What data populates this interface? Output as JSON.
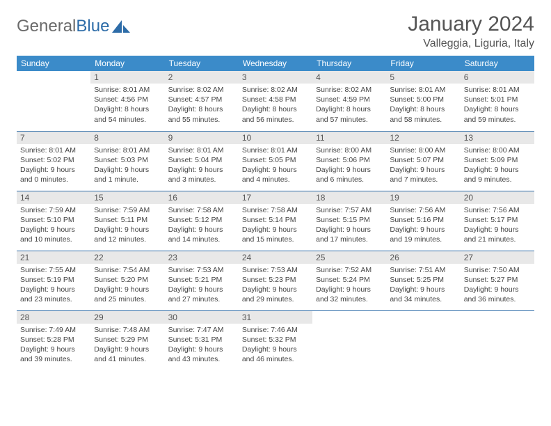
{
  "logo": {
    "word1": "General",
    "word2": "Blue"
  },
  "title": "January 2024",
  "location": "Valleggia, Liguria, Italy",
  "colors": {
    "header_bg": "#3b8bc9",
    "header_text": "#ffffff",
    "daynum_bg": "#e8e8e8",
    "border": "#2d6ca8",
    "logo_gray": "#6a6a6a",
    "logo_blue": "#2d6ca8"
  },
  "day_headers": [
    "Sunday",
    "Monday",
    "Tuesday",
    "Wednesday",
    "Thursday",
    "Friday",
    "Saturday"
  ],
  "weeks": [
    [
      null,
      {
        "n": "1",
        "sr": "Sunrise: 8:01 AM",
        "ss": "Sunset: 4:56 PM",
        "d1": "Daylight: 8 hours",
        "d2": "and 54 minutes."
      },
      {
        "n": "2",
        "sr": "Sunrise: 8:02 AM",
        "ss": "Sunset: 4:57 PM",
        "d1": "Daylight: 8 hours",
        "d2": "and 55 minutes."
      },
      {
        "n": "3",
        "sr": "Sunrise: 8:02 AM",
        "ss": "Sunset: 4:58 PM",
        "d1": "Daylight: 8 hours",
        "d2": "and 56 minutes."
      },
      {
        "n": "4",
        "sr": "Sunrise: 8:02 AM",
        "ss": "Sunset: 4:59 PM",
        "d1": "Daylight: 8 hours",
        "d2": "and 57 minutes."
      },
      {
        "n": "5",
        "sr": "Sunrise: 8:01 AM",
        "ss": "Sunset: 5:00 PM",
        "d1": "Daylight: 8 hours",
        "d2": "and 58 minutes."
      },
      {
        "n": "6",
        "sr": "Sunrise: 8:01 AM",
        "ss": "Sunset: 5:01 PM",
        "d1": "Daylight: 8 hours",
        "d2": "and 59 minutes."
      }
    ],
    [
      {
        "n": "7",
        "sr": "Sunrise: 8:01 AM",
        "ss": "Sunset: 5:02 PM",
        "d1": "Daylight: 9 hours",
        "d2": "and 0 minutes."
      },
      {
        "n": "8",
        "sr": "Sunrise: 8:01 AM",
        "ss": "Sunset: 5:03 PM",
        "d1": "Daylight: 9 hours",
        "d2": "and 1 minute."
      },
      {
        "n": "9",
        "sr": "Sunrise: 8:01 AM",
        "ss": "Sunset: 5:04 PM",
        "d1": "Daylight: 9 hours",
        "d2": "and 3 minutes."
      },
      {
        "n": "10",
        "sr": "Sunrise: 8:01 AM",
        "ss": "Sunset: 5:05 PM",
        "d1": "Daylight: 9 hours",
        "d2": "and 4 minutes."
      },
      {
        "n": "11",
        "sr": "Sunrise: 8:00 AM",
        "ss": "Sunset: 5:06 PM",
        "d1": "Daylight: 9 hours",
        "d2": "and 6 minutes."
      },
      {
        "n": "12",
        "sr": "Sunrise: 8:00 AM",
        "ss": "Sunset: 5:07 PM",
        "d1": "Daylight: 9 hours",
        "d2": "and 7 minutes."
      },
      {
        "n": "13",
        "sr": "Sunrise: 8:00 AM",
        "ss": "Sunset: 5:09 PM",
        "d1": "Daylight: 9 hours",
        "d2": "and 9 minutes."
      }
    ],
    [
      {
        "n": "14",
        "sr": "Sunrise: 7:59 AM",
        "ss": "Sunset: 5:10 PM",
        "d1": "Daylight: 9 hours",
        "d2": "and 10 minutes."
      },
      {
        "n": "15",
        "sr": "Sunrise: 7:59 AM",
        "ss": "Sunset: 5:11 PM",
        "d1": "Daylight: 9 hours",
        "d2": "and 12 minutes."
      },
      {
        "n": "16",
        "sr": "Sunrise: 7:58 AM",
        "ss": "Sunset: 5:12 PM",
        "d1": "Daylight: 9 hours",
        "d2": "and 14 minutes."
      },
      {
        "n": "17",
        "sr": "Sunrise: 7:58 AM",
        "ss": "Sunset: 5:14 PM",
        "d1": "Daylight: 9 hours",
        "d2": "and 15 minutes."
      },
      {
        "n": "18",
        "sr": "Sunrise: 7:57 AM",
        "ss": "Sunset: 5:15 PM",
        "d1": "Daylight: 9 hours",
        "d2": "and 17 minutes."
      },
      {
        "n": "19",
        "sr": "Sunrise: 7:56 AM",
        "ss": "Sunset: 5:16 PM",
        "d1": "Daylight: 9 hours",
        "d2": "and 19 minutes."
      },
      {
        "n": "20",
        "sr": "Sunrise: 7:56 AM",
        "ss": "Sunset: 5:17 PM",
        "d1": "Daylight: 9 hours",
        "d2": "and 21 minutes."
      }
    ],
    [
      {
        "n": "21",
        "sr": "Sunrise: 7:55 AM",
        "ss": "Sunset: 5:19 PM",
        "d1": "Daylight: 9 hours",
        "d2": "and 23 minutes."
      },
      {
        "n": "22",
        "sr": "Sunrise: 7:54 AM",
        "ss": "Sunset: 5:20 PM",
        "d1": "Daylight: 9 hours",
        "d2": "and 25 minutes."
      },
      {
        "n": "23",
        "sr": "Sunrise: 7:53 AM",
        "ss": "Sunset: 5:21 PM",
        "d1": "Daylight: 9 hours",
        "d2": "and 27 minutes."
      },
      {
        "n": "24",
        "sr": "Sunrise: 7:53 AM",
        "ss": "Sunset: 5:23 PM",
        "d1": "Daylight: 9 hours",
        "d2": "and 29 minutes."
      },
      {
        "n": "25",
        "sr": "Sunrise: 7:52 AM",
        "ss": "Sunset: 5:24 PM",
        "d1": "Daylight: 9 hours",
        "d2": "and 32 minutes."
      },
      {
        "n": "26",
        "sr": "Sunrise: 7:51 AM",
        "ss": "Sunset: 5:25 PM",
        "d1": "Daylight: 9 hours",
        "d2": "and 34 minutes."
      },
      {
        "n": "27",
        "sr": "Sunrise: 7:50 AM",
        "ss": "Sunset: 5:27 PM",
        "d1": "Daylight: 9 hours",
        "d2": "and 36 minutes."
      }
    ],
    [
      {
        "n": "28",
        "sr": "Sunrise: 7:49 AM",
        "ss": "Sunset: 5:28 PM",
        "d1": "Daylight: 9 hours",
        "d2": "and 39 minutes."
      },
      {
        "n": "29",
        "sr": "Sunrise: 7:48 AM",
        "ss": "Sunset: 5:29 PM",
        "d1": "Daylight: 9 hours",
        "d2": "and 41 minutes."
      },
      {
        "n": "30",
        "sr": "Sunrise: 7:47 AM",
        "ss": "Sunset: 5:31 PM",
        "d1": "Daylight: 9 hours",
        "d2": "and 43 minutes."
      },
      {
        "n": "31",
        "sr": "Sunrise: 7:46 AM",
        "ss": "Sunset: 5:32 PM",
        "d1": "Daylight: 9 hours",
        "d2": "and 46 minutes."
      },
      null,
      null,
      null
    ]
  ]
}
